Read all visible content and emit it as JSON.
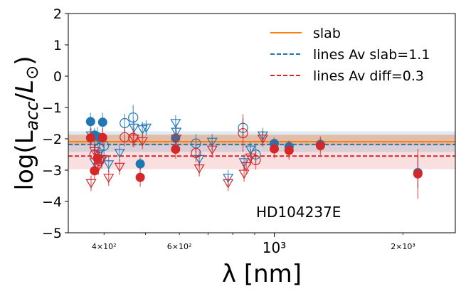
{
  "chart_data": {
    "type": "scatter",
    "title": "",
    "xlabel": "λ [nm]",
    "ylabel": "log(L_acc/L⊙)",
    "xscale": "log",
    "xlim": [
      330,
      2650
    ],
    "ylim": [
      -5,
      2
    ],
    "yticks": [
      2,
      1,
      0,
      -1,
      -2,
      -3,
      -4,
      -5
    ],
    "yticklabels": [
      "2",
      "1",
      "0",
      "−1",
      "−2",
      "−3",
      "−4",
      "−5"
    ],
    "xticks": [
      {
        "value": 400,
        "label": "4×10²",
        "major": false
      },
      {
        "value": 600,
        "label": "6×10²",
        "major": false
      },
      {
        "value": 1000,
        "label": "10³",
        "major": true
      },
      {
        "value": 2000,
        "label": "2×10³",
        "major": false
      }
    ],
    "annotation": "HD104237E",
    "legend": {
      "position": "top-right",
      "entries": [
        {
          "label": "slab",
          "style": "solid",
          "color": "#ff7f0e"
        },
        {
          "label": "lines Av slab=1.1",
          "style": "dashed",
          "color": "#1f77b4"
        },
        {
          "label": "lines Av diff=0.3",
          "style": "dashed",
          "color": "#d62728"
        }
      ]
    },
    "colors": {
      "blue": "#1f77b4",
      "red": "#d62728",
      "orange": "#ff7f0e"
    },
    "reference_lines": {
      "slab": {
        "value": -2.09,
        "band": [
          -2.22,
          -1.86
        ]
      },
      "lines_av_slab": {
        "value": -2.18,
        "band": [
          -2.42,
          -1.76
        ]
      },
      "lines_av_diff": {
        "value": -2.55,
        "band": [
          -2.97,
          -1.88
        ]
      }
    },
    "series": [
      {
        "name": "Av slab=1.1 (blue)",
        "color": "#1f77b4",
        "points": [
          {
            "x": 372,
            "y": -1.45,
            "err": 0.28,
            "marker": "filled"
          },
          {
            "x": 380,
            "y": -1.88,
            "err": 0.22,
            "marker": "filled"
          },
          {
            "x": 386,
            "y": -1.93,
            "err": 0.3,
            "marker": "filled"
          },
          {
            "x": 397,
            "y": -1.47,
            "err": 0.3,
            "marker": "filled"
          },
          {
            "x": 486,
            "y": -2.8,
            "err": 0.2,
            "marker": "filled"
          },
          {
            "x": 588,
            "y": -1.98,
            "err": 0.25,
            "marker": "filled"
          },
          {
            "x": 1000,
            "y": -2.15,
            "err": 0.2,
            "marker": "filled"
          },
          {
            "x": 1083,
            "y": -2.25,
            "err": 0.2,
            "marker": "filled"
          },
          {
            "x": 1282,
            "y": -2.18,
            "err": 0.2,
            "marker": "filled"
          },
          {
            "x": 2166,
            "y": -3.08,
            "err": 0.5,
            "marker": "filled"
          },
          {
            "x": 380,
            "y": -2.05,
            "err": 0.3,
            "marker": "open_circle"
          },
          {
            "x": 390,
            "y": -2.3,
            "err": 0.3,
            "marker": "open_circle"
          },
          {
            "x": 400,
            "y": -2.22,
            "err": 0.3,
            "marker": "open_circle"
          },
          {
            "x": 447,
            "y": -1.5,
            "err": 0.3,
            "marker": "open_circle"
          },
          {
            "x": 468,
            "y": -1.32,
            "err": 0.4,
            "marker": "open_circle"
          },
          {
            "x": 656,
            "y": -2.15,
            "err": 0.3,
            "marker": "open_circle"
          },
          {
            "x": 845,
            "y": -1.65,
            "err": 0.3,
            "marker": "open_circle"
          },
          {
            "x": 905,
            "y": -2.5,
            "err": 0.3,
            "marker": "open_circle"
          },
          {
            "x": 373,
            "y": -1.9,
            "err": 0.25,
            "marker": "triangle_down"
          },
          {
            "x": 380,
            "y": -2.75,
            "err": 0.25,
            "marker": "triangle_down"
          },
          {
            "x": 388,
            "y": -2.5,
            "err": 0.25,
            "marker": "triangle_down"
          },
          {
            "x": 395,
            "y": -2.7,
            "err": 0.25,
            "marker": "triangle_down"
          },
          {
            "x": 410,
            "y": -2.82,
            "err": 0.25,
            "marker": "triangle_down"
          },
          {
            "x": 435,
            "y": -2.45,
            "err": 0.25,
            "marker": "triangle_down"
          },
          {
            "x": 470,
            "y": -1.65,
            "err": 0.25,
            "marker": "triangle_down"
          },
          {
            "x": 492,
            "y": -1.7,
            "err": 0.25,
            "marker": "triangle_down"
          },
          {
            "x": 502,
            "y": -1.65,
            "err": 0.25,
            "marker": "triangle_down"
          },
          {
            "x": 588,
            "y": -1.5,
            "err": 0.25,
            "marker": "triangle_down"
          },
          {
            "x": 590,
            "y": -1.78,
            "err": 0.25,
            "marker": "triangle_down"
          },
          {
            "x": 668,
            "y": -2.65,
            "err": 0.25,
            "marker": "triangle_down"
          },
          {
            "x": 716,
            "y": -2.1,
            "err": 0.25,
            "marker": "triangle_down"
          },
          {
            "x": 780,
            "y": -3.25,
            "err": 0.25,
            "marker": "triangle_down"
          },
          {
            "x": 850,
            "y": -2.75,
            "err": 0.25,
            "marker": "triangle_down"
          },
          {
            "x": 880,
            "y": -2.35,
            "err": 0.25,
            "marker": "triangle_down"
          },
          {
            "x": 940,
            "y": -1.9,
            "err": 0.25,
            "marker": "triangle_down"
          }
        ]
      },
      {
        "name": "Av diff=0.3 (red)",
        "color": "#d62728",
        "points": [
          {
            "x": 372,
            "y": -1.97,
            "err": 0.3,
            "marker": "filled"
          },
          {
            "x": 380,
            "y": -3.02,
            "err": 0.3,
            "marker": "filled"
          },
          {
            "x": 386,
            "y": -2.62,
            "err": 0.3,
            "marker": "filled"
          },
          {
            "x": 397,
            "y": -1.96,
            "err": 0.3,
            "marker": "filled"
          },
          {
            "x": 486,
            "y": -3.23,
            "err": 0.3,
            "marker": "filled"
          },
          {
            "x": 588,
            "y": -2.33,
            "err": 0.3,
            "marker": "filled"
          },
          {
            "x": 1000,
            "y": -2.32,
            "err": 0.3,
            "marker": "filled"
          },
          {
            "x": 1083,
            "y": -2.37,
            "err": 0.3,
            "marker": "filled"
          },
          {
            "x": 1282,
            "y": -2.22,
            "err": 0.3,
            "marker": "filled"
          },
          {
            "x": 2166,
            "y": -3.12,
            "err": 0.8,
            "marker": "filled"
          },
          {
            "x": 380,
            "y": -2.5,
            "err": 0.3,
            "marker": "open_circle"
          },
          {
            "x": 390,
            "y": -2.7,
            "err": 0.3,
            "marker": "open_circle"
          },
          {
            "x": 447,
            "y": -1.95,
            "err": 0.3,
            "marker": "open_circle"
          },
          {
            "x": 468,
            "y": -1.97,
            "err": 0.3,
            "marker": "open_circle"
          },
          {
            "x": 656,
            "y": -2.45,
            "err": 0.3,
            "marker": "open_circle"
          },
          {
            "x": 845,
            "y": -1.82,
            "err": 0.6,
            "marker": "open_circle"
          },
          {
            "x": 905,
            "y": -2.68,
            "err": 0.3,
            "marker": "open_circle"
          },
          {
            "x": 373,
            "y": -3.42,
            "err": 0.25,
            "marker": "triangle_down"
          },
          {
            "x": 380,
            "y": -2.4,
            "err": 0.25,
            "marker": "triangle_down"
          },
          {
            "x": 388,
            "y": -2.9,
            "err": 0.25,
            "marker": "triangle_down"
          },
          {
            "x": 395,
            "y": -2.65,
            "err": 0.25,
            "marker": "triangle_down"
          },
          {
            "x": 410,
            "y": -3.25,
            "err": 0.25,
            "marker": "triangle_down"
          },
          {
            "x": 435,
            "y": -2.9,
            "err": 0.25,
            "marker": "triangle_down"
          },
          {
            "x": 470,
            "y": -2.0,
            "err": 0.25,
            "marker": "triangle_down"
          },
          {
            "x": 492,
            "y": -2.08,
            "err": 0.25,
            "marker": "triangle_down"
          },
          {
            "x": 590,
            "y": -2.0,
            "err": 0.25,
            "marker": "triangle_down"
          },
          {
            "x": 668,
            "y": -2.95,
            "err": 0.25,
            "marker": "triangle_down"
          },
          {
            "x": 716,
            "y": -2.35,
            "err": 0.25,
            "marker": "triangle_down"
          },
          {
            "x": 780,
            "y": -3.42,
            "err": 0.25,
            "marker": "triangle_down"
          },
          {
            "x": 850,
            "y": -3.12,
            "err": 0.25,
            "marker": "triangle_down"
          },
          {
            "x": 860,
            "y": -2.88,
            "err": 0.25,
            "marker": "triangle_down"
          },
          {
            "x": 880,
            "y": -2.6,
            "err": 0.25,
            "marker": "triangle_down"
          },
          {
            "x": 940,
            "y": -2.0,
            "err": 0.25,
            "marker": "triangle_down"
          }
        ]
      }
    ]
  }
}
